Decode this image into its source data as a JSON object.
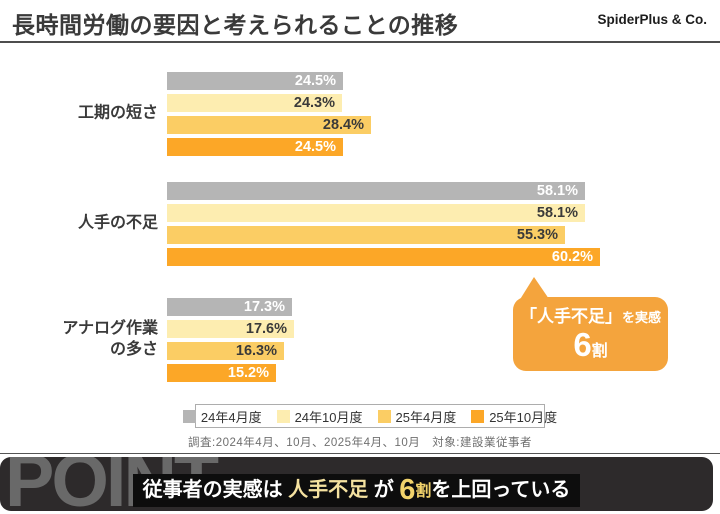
{
  "header": {
    "title": "長時間労働の要因と考えられることの推移",
    "brand": "SpiderPlus & Co."
  },
  "chart_data": {
    "type": "bar",
    "orientation": "horizontal",
    "unit": "%",
    "title": "長時間労働の要因と考えられることの推移",
    "categories": [
      "工期の短さ",
      "人手の不足",
      "アナログ作業\nの多さ"
    ],
    "series": [
      {
        "name": "24年4月度",
        "color": "#b5b5b5",
        "label_color": "#ffffff",
        "values": [
          24.5,
          58.1,
          17.3
        ]
      },
      {
        "name": "24年10月度",
        "color": "#fdedb0",
        "label_color": "#3a3a3a",
        "values": [
          24.3,
          58.1,
          17.6
        ]
      },
      {
        "name": "25年4月度",
        "color": "#fbcd64",
        "label_color": "#3a3a3a",
        "values": [
          28.4,
          55.3,
          16.3
        ]
      },
      {
        "name": "25年10月度",
        "color": "#fca727",
        "label_color": "#ffffff",
        "values": [
          24.5,
          60.2,
          15.2
        ]
      }
    ],
    "xlim": [
      0,
      62
    ],
    "value_suffix": "%",
    "grid": false,
    "legend_position": "bottom"
  },
  "callout": {
    "line1_big": "「人手不足」",
    "line1_small": "を実感",
    "line2_big": "6",
    "line2_small": "割",
    "bg": "#f4a43d"
  },
  "footnote": "調査:2024年4月、10月、2025年4月、10月　対象:建設業従事者",
  "point": {
    "watermark": "POINT",
    "pre": "従事者の実感は ",
    "highlight": "人手不足",
    "mid": " が ",
    "big": "6",
    "small": "割",
    "post": "を上回っている"
  }
}
